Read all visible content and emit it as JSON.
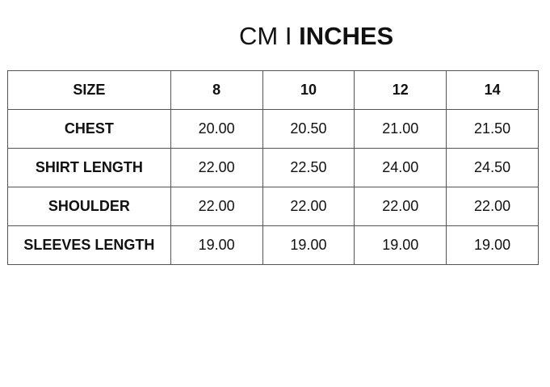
{
  "title": {
    "unit_cm": "CM",
    "separator": "I",
    "unit_inches": "INCHES"
  },
  "table": {
    "headers": [
      "SIZE",
      "8",
      "10",
      "12",
      "14"
    ],
    "rows": [
      {
        "label": "CHEST",
        "values": [
          "20.00",
          "20.50",
          "21.00",
          "21.50"
        ]
      },
      {
        "label": "SHIRT LENGTH",
        "values": [
          "22.00",
          "22.50",
          "24.00",
          "24.50"
        ]
      },
      {
        "label": "SHOULDER",
        "values": [
          "22.00",
          "22.00",
          "22.00",
          "22.00"
        ]
      },
      {
        "label": "SLEEVES LENGTH",
        "values": [
          "19.00",
          "19.00",
          "19.00",
          "19.00"
        ]
      }
    ]
  }
}
